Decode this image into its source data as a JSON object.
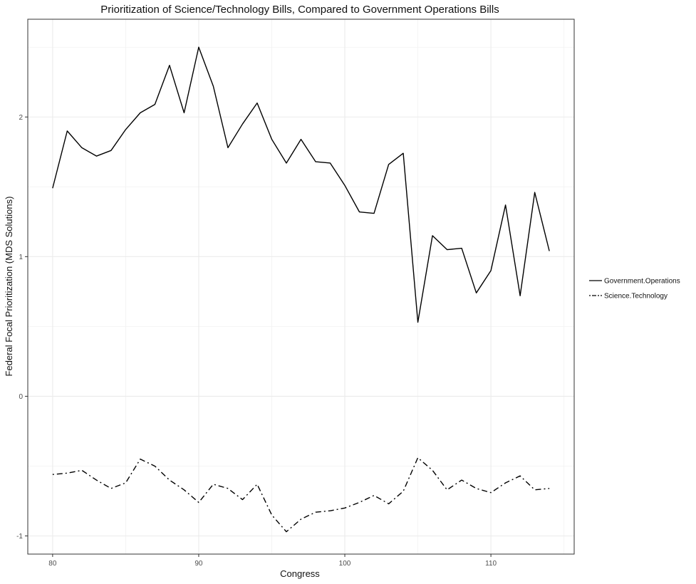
{
  "chart_data": {
    "type": "line",
    "title": "Prioritization of Science/Technology Bills, Compared to Government Operations Bills",
    "xlabel": "Congress",
    "ylabel": "Federal Focal Prioritization (MDS Solutions)",
    "xlim": [
      78.3,
      115.7
    ],
    "ylim": [
      -1.13,
      2.7
    ],
    "x_ticks": [
      80,
      90,
      100,
      110
    ],
    "y_ticks": [
      -1,
      0,
      1,
      2
    ],
    "x_minor": [
      85,
      95,
      105,
      115
    ],
    "y_minor": [
      -0.5,
      0.5,
      1.5,
      2.5
    ],
    "grid": true,
    "legend_position": "right",
    "x": [
      80,
      81,
      82,
      83,
      84,
      85,
      86,
      87,
      88,
      89,
      90,
      91,
      92,
      93,
      94,
      95,
      96,
      97,
      98,
      99,
      100,
      101,
      102,
      103,
      104,
      105,
      106,
      107,
      108,
      109,
      110,
      111,
      112,
      113,
      114
    ],
    "series": [
      {
        "name": "Government.Operations",
        "linetype": "solid",
        "values": [
          1.49,
          1.9,
          1.78,
          1.72,
          1.76,
          1.91,
          2.03,
          2.09,
          2.37,
          2.03,
          2.5,
          2.22,
          1.78,
          1.95,
          2.1,
          1.84,
          1.67,
          1.84,
          1.68,
          1.67,
          1.51,
          1.32,
          1.31,
          1.66,
          1.74,
          0.53,
          1.15,
          1.05,
          1.06,
          0.74,
          0.9,
          1.37,
          0.72,
          1.46,
          1.04
        ]
      },
      {
        "name": "Science.Technology",
        "linetype": "dotdash",
        "values": [
          -0.56,
          -0.55,
          -0.53,
          -0.6,
          -0.66,
          -0.62,
          -0.45,
          -0.5,
          -0.6,
          -0.67,
          -0.76,
          -0.63,
          -0.66,
          -0.74,
          -0.63,
          -0.85,
          -0.97,
          -0.88,
          -0.83,
          -0.82,
          -0.8,
          -0.76,
          -0.71,
          -0.77,
          -0.68,
          -0.44,
          -0.53,
          -0.67,
          -0.6,
          -0.66,
          -0.69,
          -0.62,
          -0.57,
          -0.67,
          -0.66
        ]
      }
    ]
  }
}
